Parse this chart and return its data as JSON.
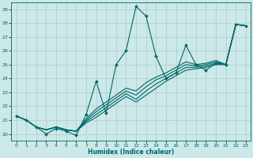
{
  "xlabel": "Humidex (Indice chaleur)",
  "bg_color": "#cce8e8",
  "line_color": "#006666",
  "grid_color": "#aacccc",
  "xlim": [
    -0.5,
    23.5
  ],
  "ylim": [
    19.5,
    29.5
  ],
  "yticks": [
    20,
    21,
    22,
    23,
    24,
    25,
    26,
    27,
    28,
    29
  ],
  "xticks": [
    0,
    1,
    2,
    3,
    4,
    5,
    6,
    7,
    8,
    9,
    10,
    11,
    12,
    13,
    14,
    15,
    16,
    17,
    18,
    19,
    20,
    21,
    22,
    23
  ],
  "lines": [
    [
      21.3,
      21.0,
      20.5,
      20.0,
      20.4,
      20.2,
      19.9,
      21.4,
      23.8,
      21.5,
      25.0,
      26.0,
      29.2,
      28.5,
      25.6,
      24.0,
      24.4,
      26.4,
      25.0,
      24.6,
      25.1,
      25.0,
      27.9,
      27.8
    ],
    [
      21.3,
      21.0,
      20.5,
      20.3,
      20.5,
      20.3,
      20.2,
      20.8,
      21.2,
      21.7,
      22.2,
      22.7,
      22.3,
      22.8,
      23.3,
      23.8,
      24.2,
      24.6,
      24.7,
      24.8,
      25.0,
      25.0,
      27.9,
      27.8
    ],
    [
      21.3,
      21.0,
      20.5,
      20.3,
      20.5,
      20.3,
      20.2,
      20.9,
      21.4,
      21.9,
      22.4,
      22.9,
      22.5,
      23.1,
      23.6,
      24.0,
      24.4,
      24.8,
      24.8,
      24.9,
      25.1,
      25.0,
      27.9,
      27.8
    ],
    [
      21.3,
      21.0,
      20.5,
      20.3,
      20.5,
      20.3,
      20.2,
      21.0,
      21.6,
      22.1,
      22.6,
      23.1,
      22.8,
      23.4,
      23.9,
      24.2,
      24.6,
      25.0,
      24.9,
      25.0,
      25.2,
      25.0,
      27.9,
      27.8
    ],
    [
      21.3,
      21.0,
      20.5,
      20.3,
      20.5,
      20.3,
      20.2,
      21.1,
      21.8,
      22.3,
      22.8,
      23.3,
      23.1,
      23.7,
      24.1,
      24.4,
      24.8,
      25.2,
      25.0,
      25.1,
      25.3,
      25.0,
      27.9,
      27.8
    ]
  ]
}
